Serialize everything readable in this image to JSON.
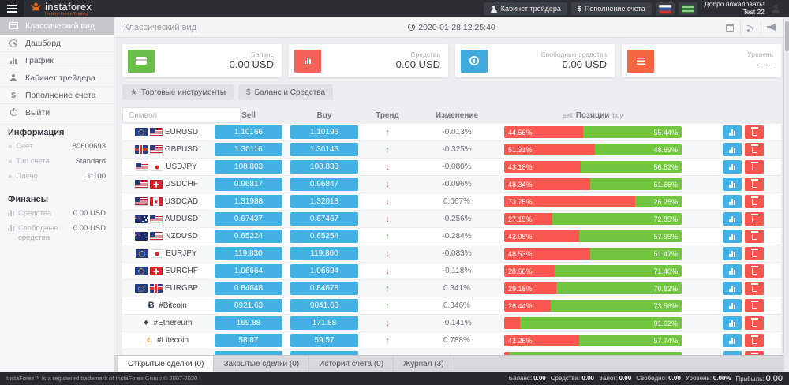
{
  "icons": {
    "dollar": "$",
    "star": "★",
    "arrow_up": "↑",
    "arrow_down": "↓",
    "chevron": "»"
  },
  "topbar": {
    "brand": "instaforex",
    "tagline": "Instant Forex Trading",
    "cabinet_label": "Кабинет трейдера",
    "deposit_label": "Пополнение счета",
    "welcome_line1": "Добро пожаловать!",
    "welcome_line2": "Test 22"
  },
  "sidebar": {
    "menu": [
      {
        "label": "Классический вид"
      },
      {
        "label": "Дашборд"
      },
      {
        "label": "График"
      },
      {
        "label": "Кабинет трейдера"
      },
      {
        "label": "Пополнение счета"
      },
      {
        "label": "Выйти"
      }
    ],
    "info_title": "Информация",
    "info": [
      {
        "label": "Счет",
        "value": "80600693"
      },
      {
        "label": "Тип счета",
        "value": "Standard"
      },
      {
        "label": "Плечо",
        "value": "1:100"
      }
    ],
    "finance_title": "Финансы",
    "finance": [
      {
        "label": "Средства",
        "value": "0.00 USD"
      },
      {
        "label": "Свободные средства",
        "value": "0.00 USD"
      }
    ]
  },
  "pageheader": {
    "title": "Классический вид",
    "datetime": "2020-01-28 12:25:40"
  },
  "cards": [
    {
      "label": "Баланс",
      "value": "0.00 USD",
      "color": "#6abf4b"
    },
    {
      "label": "Средства",
      "value": "0.00 USD",
      "color": "#f4625a"
    },
    {
      "label": "Свободные средства",
      "value": "0.00 USD",
      "color": "#41aadd"
    },
    {
      "label": "Уровень",
      "value": "----",
      "color": "#f3663f"
    }
  ],
  "toolbar": {
    "instruments_label": "Торговые инструменты",
    "balance_label": "Баланс и Средства"
  },
  "table": {
    "symbol_placeholder": "Символ",
    "headers": {
      "sell": "Sell",
      "buy": "Buy",
      "trend": "Тренд",
      "change": "Изменение",
      "pos_sell": "sell",
      "pos_title": "Позиции",
      "pos_buy": "buy"
    },
    "crypto_glyphs": {
      "btc": "Ƀ",
      "eth": "♦",
      "ltc": "Ł"
    },
    "rows": [
      {
        "symbol": "EURUSD",
        "icons": [
          "eu",
          "us"
        ],
        "sell": "1.10166",
        "buy": "1.10196",
        "trend": "up",
        "change": "-0.013%",
        "sell_pct": 44.56,
        "buy_pct": 55.44,
        "sell_label": "44.56%",
        "buy_label": "55.44%"
      },
      {
        "symbol": "GBPUSD",
        "icons": [
          "gb",
          "us"
        ],
        "sell": "1.30116",
        "buy": "1.30146",
        "trend": "up",
        "change": "-0.325%",
        "sell_pct": 51.31,
        "buy_pct": 48.69,
        "sell_label": "51.31%",
        "buy_label": "48.69%"
      },
      {
        "symbol": "USDJPY",
        "icons": [
          "us",
          "jp"
        ],
        "sell": "108.803",
        "buy": "108.833",
        "trend": "down",
        "change": "-0.080%",
        "sell_pct": 43.18,
        "buy_pct": 56.82,
        "sell_label": "43.18%",
        "buy_label": "56.82%"
      },
      {
        "symbol": "USDCHF",
        "icons": [
          "us",
          "ch"
        ],
        "sell": "0.96817",
        "buy": "0.96847",
        "trend": "down",
        "change": "-0.096%",
        "sell_pct": 48.34,
        "buy_pct": 51.66,
        "sell_label": "48.34%",
        "buy_label": "51.66%"
      },
      {
        "symbol": "USDCAD",
        "icons": [
          "us",
          "ca"
        ],
        "sell": "1.31988",
        "buy": "1.32018",
        "trend": "down",
        "change": "0.067%",
        "sell_pct": 73.75,
        "buy_pct": 26.25,
        "sell_label": "73.75%",
        "buy_label": "26.25%"
      },
      {
        "symbol": "AUDUSD",
        "icons": [
          "au",
          "us"
        ],
        "sell": "0.67437",
        "buy": "0.67467",
        "trend": "down",
        "change": "-0.256%",
        "sell_pct": 27.15,
        "buy_pct": 72.85,
        "sell_label": "27.15%",
        "buy_label": "72.85%"
      },
      {
        "symbol": "NZDUSD",
        "icons": [
          "nz",
          "us"
        ],
        "sell": "0.65224",
        "buy": "0.65254",
        "trend": "up",
        "change": "-0.284%",
        "sell_pct": 42.05,
        "buy_pct": 57.95,
        "sell_label": "42.05%",
        "buy_label": "57.95%"
      },
      {
        "symbol": "EURJPY",
        "icons": [
          "eu",
          "jp"
        ],
        "sell": "119.830",
        "buy": "119.860",
        "trend": "down",
        "change": "-0.083%",
        "sell_pct": 48.53,
        "buy_pct": 51.47,
        "sell_label": "48.53%",
        "buy_label": "51.47%"
      },
      {
        "symbol": "EURCHF",
        "icons": [
          "eu",
          "ch"
        ],
        "sell": "1.06664",
        "buy": "1.06694",
        "trend": "down",
        "change": "-0.118%",
        "sell_pct": 28.6,
        "buy_pct": 71.4,
        "sell_label": "28.60%",
        "buy_label": "71.40%"
      },
      {
        "symbol": "EURGBP",
        "icons": [
          "eu",
          "gb"
        ],
        "sell": "0.84648",
        "buy": "0.84678",
        "trend": "up",
        "change": "0.341%",
        "sell_pct": 29.18,
        "buy_pct": 70.82,
        "sell_label": "29.18%",
        "buy_label": "70.82%"
      },
      {
        "symbol": "#Bitcoin",
        "icons": [
          "btc"
        ],
        "sell": "8921.63",
        "buy": "9041.63",
        "trend": "up",
        "change": "0.346%",
        "sell_pct": 26.44,
        "buy_pct": 73.56,
        "sell_label": "26.44%",
        "buy_label": "73.56%"
      },
      {
        "symbol": "#Ethereum",
        "icons": [
          "eth"
        ],
        "sell": "169.88",
        "buy": "171.88",
        "trend": "down",
        "change": "-0.141%",
        "sell_pct": 8.98,
        "buy_pct": 91.02,
        "sell_label": "",
        "buy_label": "91.02%"
      },
      {
        "symbol": "#Litecoin",
        "icons": [
          "ltc"
        ],
        "sell": "58.87",
        "buy": "59.57",
        "trend": "up",
        "change": "0.788%",
        "sell_pct": 42.26,
        "buy_pct": 57.74,
        "sell_label": "42.26%",
        "buy_label": "57.74%"
      },
      {
        "symbol": "",
        "icons": [],
        "sell": "",
        "buy": "",
        "trend": "",
        "change": "",
        "sell_pct": 2.5,
        "buy_pct": 97.5,
        "sell_label": "",
        "buy_label": ""
      }
    ]
  },
  "tabs": [
    {
      "label": "Открытые сделки (0)",
      "active": true
    },
    {
      "label": "Закрытые сделки (0)",
      "active": false
    },
    {
      "label": "История счета (0)",
      "active": false
    },
    {
      "label": "Журнал (3)",
      "active": false
    }
  ],
  "footer": {
    "trademark": "InstaForex™ is a registered trademark of InstaForex Group © 2007-2020",
    "stats": [
      {
        "label": "Баланс:",
        "value": "0.00"
      },
      {
        "label": "Средства:",
        "value": "0.00"
      },
      {
        "label": "Залог:",
        "value": "0.00"
      },
      {
        "label": "Свободно:",
        "value": "0.00"
      },
      {
        "label": "Уровень:",
        "value": "0.00%"
      },
      {
        "label": "Прибыль:",
        "value": "0.00"
      }
    ]
  },
  "colors": {
    "accent_blue": "#43b1e3",
    "sell_red": "#f9574f",
    "buy_green": "#72c53e",
    "brand_orange": "#f26b21"
  }
}
